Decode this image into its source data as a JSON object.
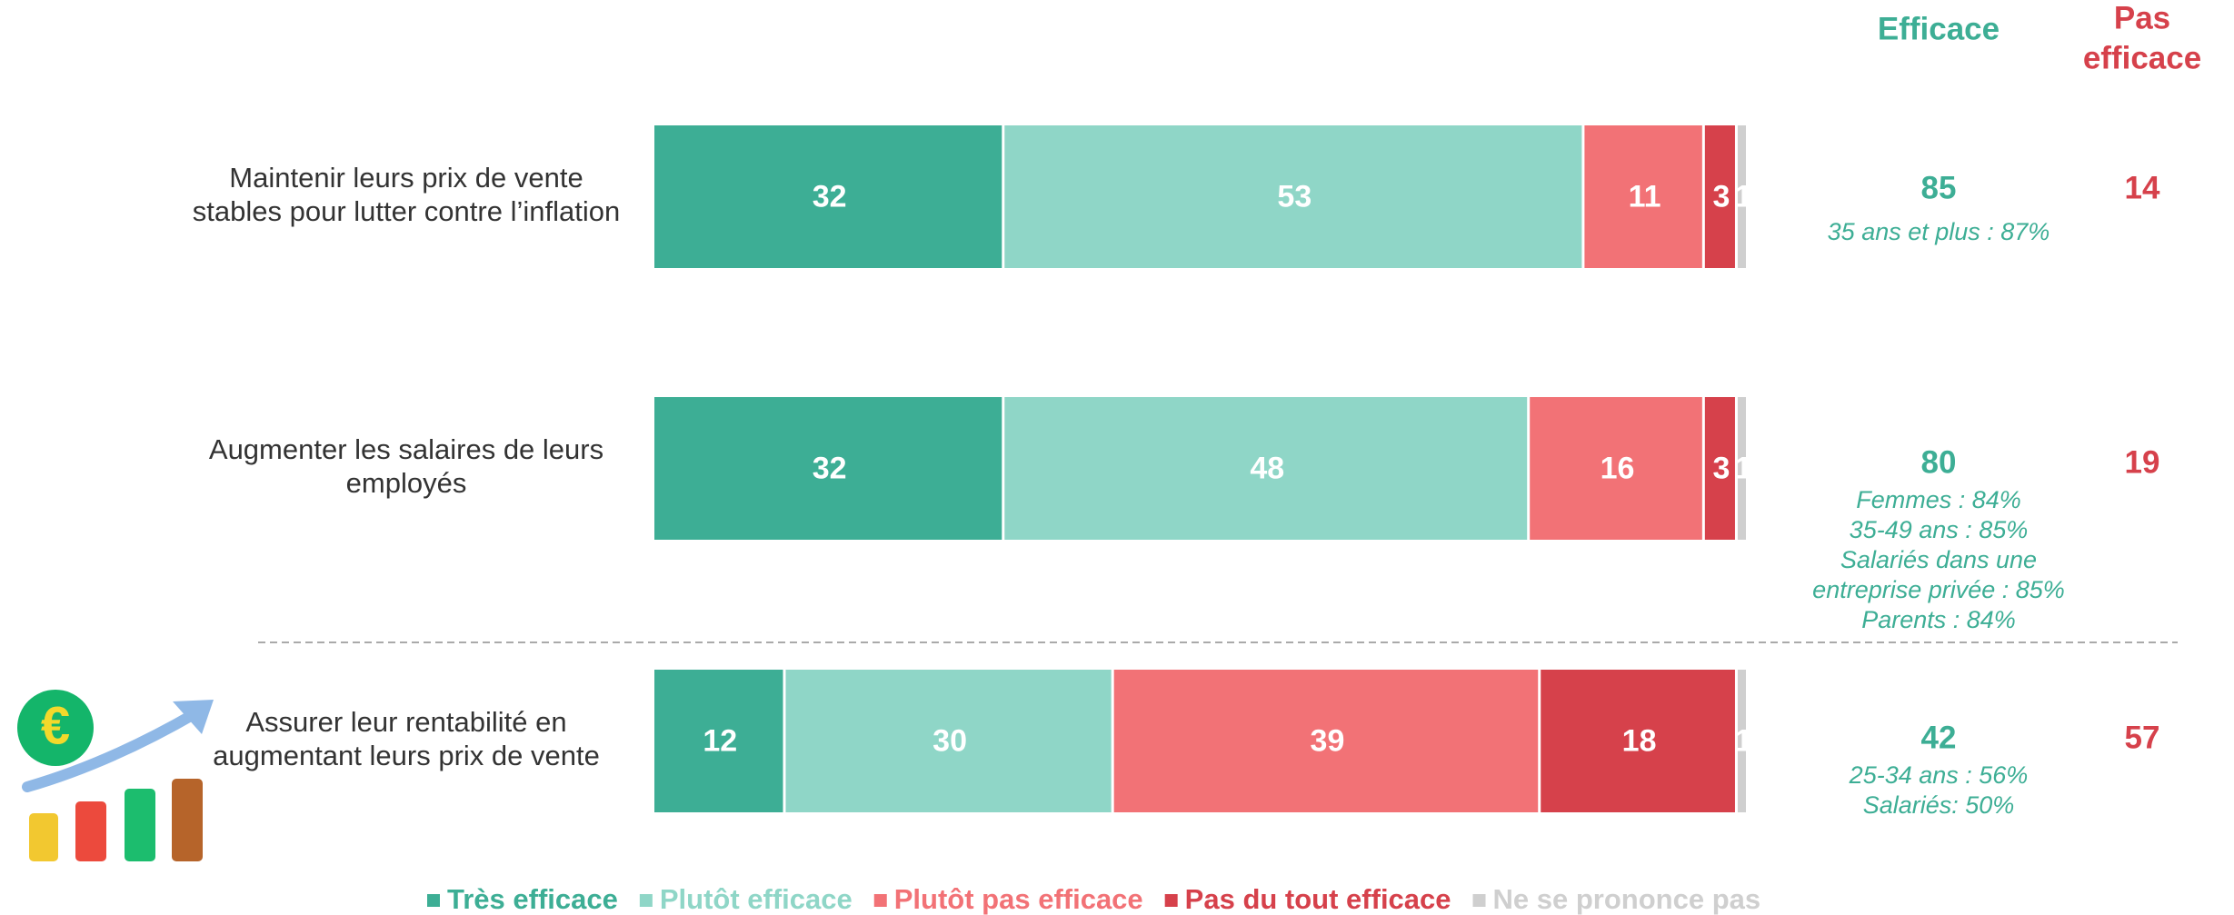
{
  "chart_data": {
    "type": "bar",
    "orientation": "horizontal",
    "stacked": true,
    "categories": [
      [
        "Maintenir leurs prix de vente",
        "stables pour lutter contre l’inflation"
      ],
      [
        "Augmenter les salaires de leurs",
        "employés"
      ],
      [
        "Assurer leur rentabilité en",
        "augmentant leurs prix de vente"
      ]
    ],
    "xlim": [
      0,
      100
    ],
    "series": [
      {
        "name": "Très efficace",
        "color": "#3dae95",
        "values": [
          32,
          32,
          12
        ]
      },
      {
        "name": "Plutôt efficace",
        "color": "#8fd6c7",
        "values": [
          53,
          48,
          30
        ]
      },
      {
        "name": "Plutôt pas efficace",
        "color": "#f27276",
        "values": [
          11,
          16,
          39
        ]
      },
      {
        "name": "Pas du tout efficace",
        "color": "#d6414b",
        "values": [
          3,
          3,
          18
        ]
      },
      {
        "name": "Ne se prononce pas",
        "color": "#cfcfcf",
        "values": [
          1,
          1,
          1
        ]
      }
    ],
    "totals": [
      {
        "label": [
          "Efficace"
        ],
        "color": "#3dae95",
        "values": [
          85,
          80,
          42
        ]
      },
      {
        "label": [
          "Pas",
          "efficace"
        ],
        "color": "#d6414b",
        "values": [
          14,
          19,
          57
        ]
      }
    ],
    "notes": [
      [
        "35 ans et plus : 87%"
      ],
      [
        "Femmes : 84%",
        "35-49 ans : 85%",
        "Salariés dans une",
        "entreprise privée : 85%",
        "Parents : 84%"
      ],
      [
        "25-34 ans : 56%",
        "Salariés: 50%"
      ]
    ]
  }
}
